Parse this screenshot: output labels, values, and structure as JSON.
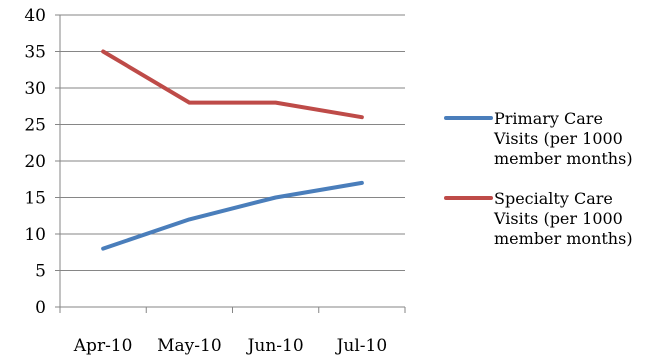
{
  "chart_data": {
    "type": "line",
    "categories": [
      "Apr-10",
      "May-10",
      "Jun-10",
      "Jul-10"
    ],
    "series": [
      {
        "name": "Primary Care Visits (per 1000 member months)",
        "name_lines": [
          "Primary Care",
          "Visits (per 1000",
          "member months)"
        ],
        "values": [
          8,
          12,
          15,
          17
        ],
        "color": "#4a7ebb"
      },
      {
        "name": "Specialty Care Visits (per 1000 member months)",
        "name_lines": [
          "Specialty Care",
          "Visits (per 1000",
          "member months)"
        ],
        "values": [
          35,
          28,
          28,
          26
        ],
        "color": "#be4b48"
      }
    ],
    "ylim": [
      0,
      40
    ],
    "yticks": [
      0,
      5,
      10,
      15,
      20,
      25,
      30,
      35,
      40
    ],
    "grid": true,
    "legend_position": "right",
    "title": "",
    "xlabel": "",
    "ylabel": ""
  }
}
